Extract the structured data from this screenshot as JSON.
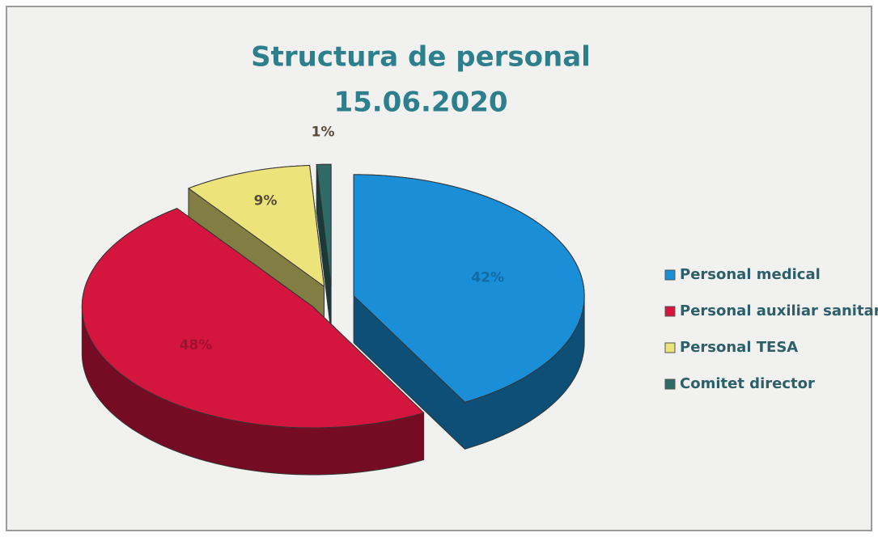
{
  "chart_data": {
    "type": "pie3d",
    "title": "Structura de personal",
    "subtitle": "15.06.2020",
    "categories": [
      "Personal medical",
      "Personal auxiliar sanitar",
      "Personal TESA",
      "Comitet director"
    ],
    "values": [
      42,
      48,
      9,
      1
    ],
    "value_labels": [
      "42%",
      "48%",
      "9%",
      "1%"
    ],
    "colors": [
      "#1a8fd8",
      "#d4163f",
      "#ece47a",
      "#2f6a66"
    ],
    "legend": "right"
  }
}
